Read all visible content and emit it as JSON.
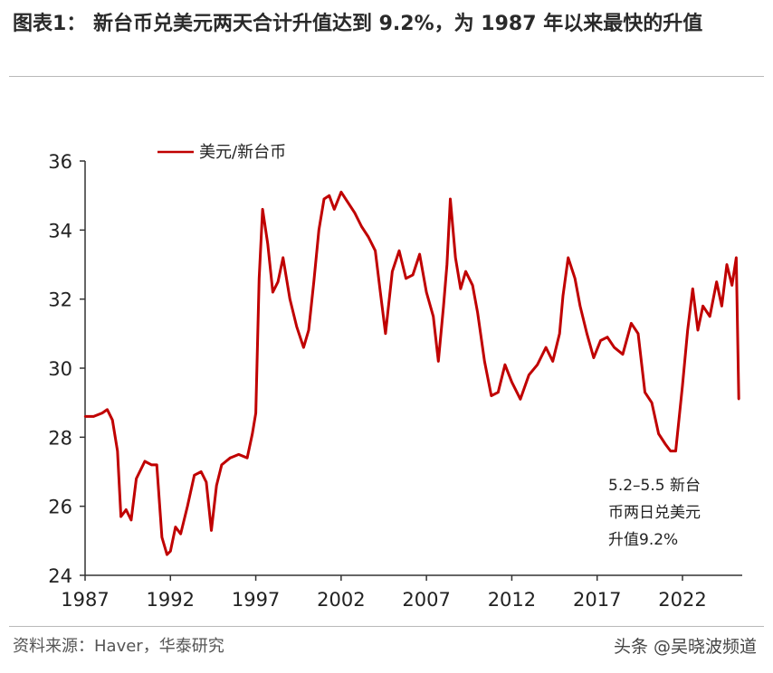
{
  "figure": {
    "title": "图表1： 新台币兑美元两天合计升值达到 9.2%，为 1987 年以来最快的升值"
  },
  "source": "资料来源：Haver，华泰研究",
  "watermark": "头条 @吴晓波频道",
  "colors": {
    "series": "#c00000",
    "axis": "#333333",
    "text": "#222222"
  },
  "chart_data": {
    "type": "line",
    "title": "",
    "xlabel": "",
    "ylabel": "",
    "xlim": [
      1987,
      2025.5
    ],
    "ylim": [
      24,
      36
    ],
    "xticks": [
      1987,
      1992,
      1997,
      2002,
      2007,
      2012,
      2017,
      2022
    ],
    "yticks": [
      24,
      26,
      28,
      30,
      32,
      34,
      36
    ],
    "grid": false,
    "legend": {
      "position": "top-left",
      "entries": [
        "美元/新台币"
      ]
    },
    "annotation": [
      "5.2–5.5 新台",
      "币两日兑美元",
      "升值9.2%"
    ],
    "series": [
      {
        "name": "美元/新台币",
        "x": [
          1987.0,
          1987.5,
          1988.0,
          1988.3,
          1988.6,
          1988.9,
          1989.1,
          1989.4,
          1989.7,
          1990.0,
          1990.5,
          1990.9,
          1991.2,
          1991.5,
          1991.8,
          1992.0,
          1992.3,
          1992.6,
          1993.0,
          1993.4,
          1993.8,
          1994.1,
          1994.4,
          1994.7,
          1995.0,
          1995.5,
          1996.0,
          1996.5,
          1996.8,
          1997.0,
          1997.2,
          1997.4,
          1997.7,
          1998.0,
          1998.3,
          1998.6,
          1999.0,
          1999.4,
          1999.8,
          2000.1,
          2000.4,
          2000.7,
          2001.0,
          2001.3,
          2001.6,
          2002.0,
          2002.4,
          2002.8,
          2003.2,
          2003.6,
          2004.0,
          2004.3,
          2004.6,
          2005.0,
          2005.4,
          2005.8,
          2006.2,
          2006.6,
          2007.0,
          2007.4,
          2007.7,
          2008.0,
          2008.2,
          2008.4,
          2008.7,
          2009.0,
          2009.3,
          2009.7,
          2010.0,
          2010.4,
          2010.8,
          2011.2,
          2011.6,
          2012.0,
          2012.5,
          2013.0,
          2013.5,
          2014.0,
          2014.4,
          2014.8,
          2015.0,
          2015.3,
          2015.7,
          2016.0,
          2016.4,
          2016.8,
          2017.2,
          2017.6,
          2018.0,
          2018.5,
          2019.0,
          2019.4,
          2019.8,
          2020.2,
          2020.6,
          2021.0,
          2021.3,
          2021.6,
          2022.0,
          2022.3,
          2022.6,
          2022.9,
          2023.2,
          2023.6,
          2024.0,
          2024.3,
          2024.6,
          2024.9,
          2025.15,
          2025.3
        ],
        "values": [
          28.6,
          28.6,
          28.7,
          28.8,
          28.5,
          27.6,
          25.7,
          25.9,
          25.6,
          26.8,
          27.3,
          27.2,
          27.2,
          25.1,
          24.6,
          24.7,
          25.4,
          25.2,
          26.0,
          26.9,
          27.0,
          26.7,
          25.3,
          26.6,
          27.2,
          27.4,
          27.5,
          27.4,
          28.1,
          28.7,
          32.6,
          34.6,
          33.6,
          32.2,
          32.5,
          33.2,
          32.0,
          31.2,
          30.6,
          31.1,
          32.5,
          34.0,
          34.9,
          35.0,
          34.6,
          35.1,
          34.8,
          34.5,
          34.1,
          33.8,
          33.4,
          32.2,
          31.0,
          32.8,
          33.4,
          32.6,
          32.7,
          33.3,
          32.2,
          31.5,
          30.2,
          31.8,
          33.0,
          34.9,
          33.2,
          32.3,
          32.8,
          32.4,
          31.6,
          30.2,
          29.2,
          29.3,
          30.1,
          29.6,
          29.1,
          29.8,
          30.1,
          30.6,
          30.2,
          31.0,
          32.1,
          33.2,
          32.6,
          31.8,
          31.0,
          30.3,
          30.8,
          30.9,
          30.6,
          30.4,
          31.3,
          31.0,
          29.3,
          29.0,
          28.1,
          27.8,
          27.6,
          27.6,
          29.5,
          31.1,
          32.3,
          31.1,
          31.8,
          31.5,
          32.5,
          31.8,
          33.0,
          32.4,
          33.2,
          29.1
        ]
      }
    ]
  }
}
